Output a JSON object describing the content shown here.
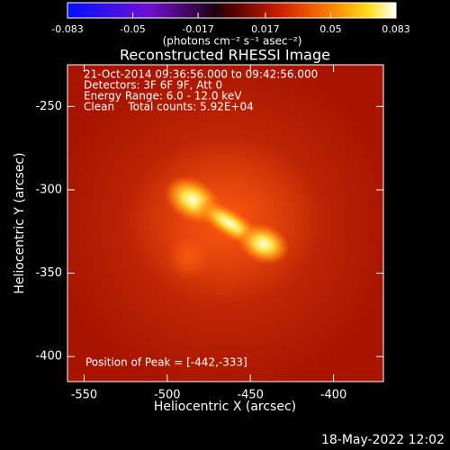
{
  "chart_data": {
    "type": "image",
    "title": "Reconstructed RHESSI Image",
    "xlabel": "Heliocentric X (arcsec)",
    "ylabel": "Heliocentric Y (arcsec)",
    "xlim": [
      -560,
      -370
    ],
    "ylim": [
      -415,
      -225
    ],
    "xticks": [
      -550,
      -500,
      -450,
      -400
    ],
    "yticks": [
      -400,
      -350,
      -300,
      -250
    ],
    "colorbar": {
      "label": "(photons cm⁻² s⁻¹ asec⁻²)",
      "lim": [
        -0.083,
        0.083
      ],
      "ticks": [
        -0.083,
        -0.05,
        -0.017,
        0.017,
        0.05,
        0.083
      ]
    },
    "annotations": [
      "21-Oct-2014 09:36:56.000 to 09:42:56.000",
      "Detectors: 3F 6F 9F, Att 0",
      "Energy Range: 6.0 - 12.0 keV",
      "Clean    Total counts: 5.92E+04"
    ],
    "peak_label": "Position of Peak = [-442,-333]"
  },
  "footer": "18-May-2022 12:02"
}
